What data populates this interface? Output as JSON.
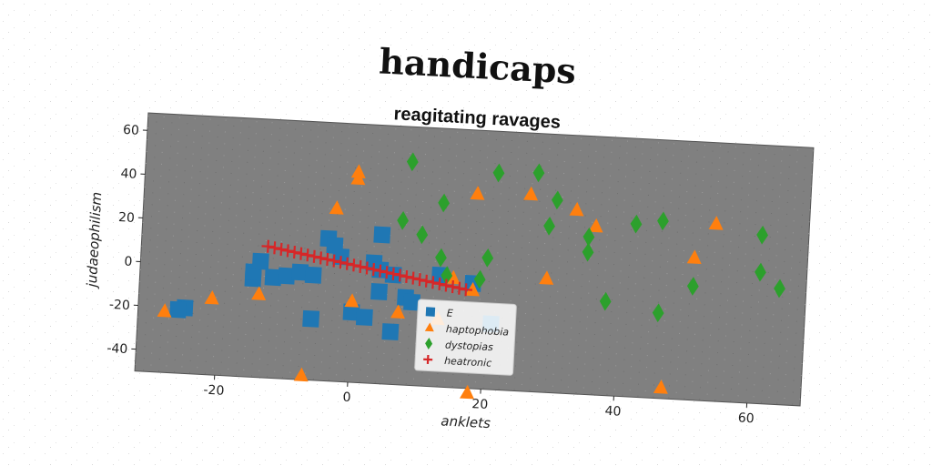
{
  "chart_data": {
    "type": "scatter",
    "title": "handicaps",
    "subtitle": "reagitating ravages",
    "xlabel": "anklets",
    "ylabel": "judaeophilism",
    "xlim": [
      -32,
      68
    ],
    "ylim": [
      -50,
      68
    ],
    "xticks": [
      -20,
      0,
      20,
      40,
      60
    ],
    "yticks": [
      -40,
      -20,
      0,
      20,
      40,
      60
    ],
    "grid": false,
    "legend_position": "lower-center",
    "plot_background": "#808080",
    "series": [
      {
        "name": "E",
        "marker": "square",
        "color": "#1f77b4",
        "points": [
          [
            -25,
            -20
          ],
          [
            -26,
            -21
          ],
          [
            -15,
            -5
          ],
          [
            -15,
            -2
          ],
          [
            -14,
            3
          ],
          [
            -12,
            -4
          ],
          [
            -10,
            -3
          ],
          [
            -8,
            -1
          ],
          [
            -6,
            -2
          ],
          [
            -6,
            -22
          ],
          [
            -4,
            15
          ],
          [
            -3,
            12
          ],
          [
            -2,
            7
          ],
          [
            0,
            -18
          ],
          [
            2,
            -20
          ],
          [
            3,
            5
          ],
          [
            4,
            18
          ],
          [
            4,
            2
          ],
          [
            4,
            -8
          ],
          [
            6,
            0
          ],
          [
            6,
            -26
          ],
          [
            8,
            -10
          ],
          [
            9,
            -12
          ],
          [
            13,
            1
          ],
          [
            18,
            -2
          ],
          [
            21,
            -20
          ]
        ]
      },
      {
        "name": "haptophobia",
        "marker": "triangle",
        "color": "#ff7f0e",
        "points": [
          [
            -28,
            -22
          ],
          [
            -21,
            -15
          ],
          [
            -14,
            -12
          ],
          [
            -7,
            -48
          ],
          [
            -3,
            29
          ],
          [
            0,
            46
          ],
          [
            0,
            43
          ],
          [
            0,
            -13
          ],
          [
            7,
            -17
          ],
          [
            13,
            -19
          ],
          [
            15,
            0
          ],
          [
            18,
            39
          ],
          [
            18,
            -5
          ],
          [
            26,
            40
          ],
          [
            29,
            2
          ],
          [
            33,
            34
          ],
          [
            36,
            27
          ],
          [
            47,
            -45
          ],
          [
            51,
            15
          ],
          [
            54,
            31
          ],
          [
            18,
            -52
          ]
        ]
      },
      {
        "name": "dystopias",
        "marker": "diamond",
        "color": "#2ca02c",
        "points": [
          [
            8,
            52
          ],
          [
            7,
            25
          ],
          [
            10,
            19
          ],
          [
            13,
            34
          ],
          [
            13,
            9
          ],
          [
            14,
            1
          ],
          [
            19,
            0
          ],
          [
            20,
            10
          ],
          [
            21,
            49
          ],
          [
            27,
            50
          ],
          [
            30,
            38
          ],
          [
            29,
            26
          ],
          [
            35,
            22
          ],
          [
            35,
            15
          ],
          [
            38,
            -7
          ],
          [
            42,
            29
          ],
          [
            46,
            31
          ],
          [
            46,
            -11
          ],
          [
            51,
            2
          ],
          [
            61,
            27
          ],
          [
            61,
            10
          ],
          [
            64,
            3
          ]
        ]
      },
      {
        "name": "heatronic",
        "marker": "plus",
        "color": "#d62728",
        "points": [
          [
            -13,
            10
          ],
          [
            -12,
            9.5
          ],
          [
            -11,
            9
          ],
          [
            -10,
            8.5
          ],
          [
            -9,
            8
          ],
          [
            -8,
            7.5
          ],
          [
            -7,
            7
          ],
          [
            -6,
            6.5
          ],
          [
            -5,
            6
          ],
          [
            -4,
            5.5
          ],
          [
            -3,
            5
          ],
          [
            -2,
            4.5
          ],
          [
            -1,
            4
          ],
          [
            0,
            3.5
          ],
          [
            1,
            3
          ],
          [
            2,
            2.5
          ],
          [
            3,
            2
          ],
          [
            4,
            1.5
          ],
          [
            5,
            1
          ],
          [
            6,
            0.5
          ],
          [
            7,
            0
          ],
          [
            8,
            -0.5
          ],
          [
            9,
            -1
          ],
          [
            10,
            -1.5
          ],
          [
            11,
            -2
          ],
          [
            12,
            -2.5
          ],
          [
            13,
            -3
          ],
          [
            14,
            -3.5
          ],
          [
            15,
            -4
          ],
          [
            16,
            -4.5
          ],
          [
            17,
            -5
          ]
        ]
      }
    ]
  }
}
